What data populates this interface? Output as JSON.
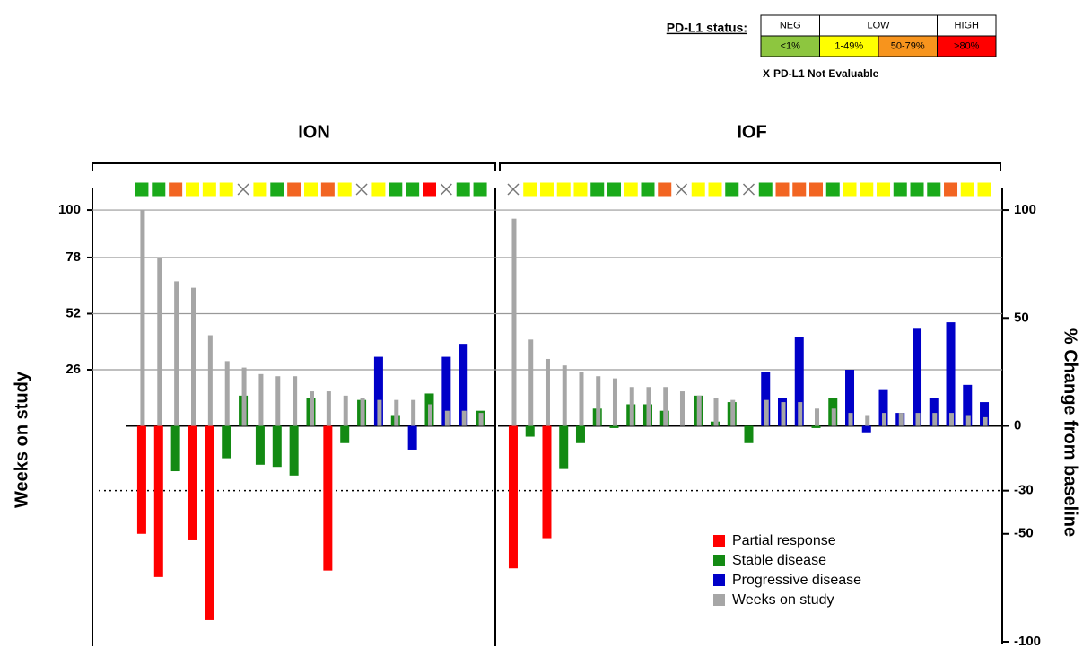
{
  "chart_data": {
    "type": "waterfall",
    "y_label": "Weeks on study",
    "y2_label": "% Change from baseline",
    "ylim": [
      0,
      110
    ],
    "yticks": [
      26,
      52,
      78,
      100
    ],
    "y2lim": [
      -100,
      110
    ],
    "y2ticks": [
      100,
      50,
      0,
      -30,
      -50,
      -100
    ],
    "threshold": -30,
    "grid": true,
    "legend_position": "lower right",
    "pdl1_status": {
      "title": "PD-L1 status:",
      "groups": [
        {
          "label": "NEG",
          "bins": [
            {
              "label": "<1%",
              "color": "#8dc63f"
            }
          ]
        },
        {
          "label": "LOW",
          "bins": [
            {
              "label": "1-49%",
              "color": "#ffff00"
            },
            {
              "label": "50-79%",
              "color": "#f7941d"
            }
          ]
        },
        {
          "label": "HIGH",
          "bins": [
            {
              "label": ">80%",
              "color": "#ff0000"
            }
          ]
        }
      ],
      "not_evaluable_symbol": "X",
      "not_evaluable_label": "PD-L1 Not Evaluable",
      "patient_colors": {
        "<1%": "#1aaa1a",
        "1-49%": "#ffff00",
        "50-79%": "#f26522",
        ">80%": "#ff0000"
      }
    },
    "series": [
      {
        "name": "Partial response",
        "color": "#ff0000"
      },
      {
        "name": "Stable disease",
        "color": "#138a13"
      },
      {
        "name": "Progressive disease",
        "color": "#0000c8"
      },
      {
        "name": "Weeks on study",
        "color": "#a6a6a6"
      }
    ],
    "panels": [
      {
        "name": "ION",
        "pdl1": [
          "<1%",
          "<1%",
          "50-79%",
          "1-49%",
          "1-49%",
          "1-49%",
          null,
          "1-49%",
          "<1%",
          "50-79%",
          "1-49%",
          "50-79%",
          "1-49%",
          null,
          "1-49%",
          "<1%",
          "<1%",
          ">80%",
          null,
          "<1%",
          "<1%"
        ],
        "values": [
          [
            -50,
            -70,
            null,
            -53,
            -90,
            null,
            null,
            null,
            null,
            null,
            null,
            -67,
            null,
            null,
            null,
            null,
            null,
            null,
            null,
            null,
            null
          ],
          [
            null,
            null,
            -21,
            null,
            null,
            -15,
            14,
            -18,
            -19,
            -23,
            13,
            null,
            -8,
            12,
            null,
            5,
            null,
            15,
            null,
            null,
            7
          ],
          [
            null,
            null,
            null,
            null,
            null,
            null,
            null,
            null,
            null,
            null,
            null,
            null,
            null,
            null,
            32,
            null,
            -11,
            null,
            32,
            38,
            null
          ],
          [
            100,
            78,
            67,
            64,
            42,
            30,
            27,
            24,
            23,
            23,
            16,
            16,
            14,
            13,
            12,
            12,
            12,
            10,
            7,
            7,
            6
          ]
        ]
      },
      {
        "name": "IOF",
        "pdl1": [
          null,
          "1-49%",
          "1-49%",
          "1-49%",
          "1-49%",
          "<1%",
          "<1%",
          "1-49%",
          "<1%",
          "50-79%",
          null,
          "1-49%",
          "1-49%",
          "<1%",
          null,
          "<1%",
          "50-79%",
          "50-79%",
          "50-79%",
          "<1%",
          "1-49%",
          "1-49%",
          "1-49%",
          "<1%",
          "<1%",
          "<1%",
          "50-79%",
          "1-49%",
          "1-49%"
        ],
        "values": [
          [
            -66,
            null,
            -52,
            null,
            null,
            null,
            null,
            null,
            null,
            null,
            null,
            null,
            null,
            null,
            null,
            null,
            null,
            null,
            null,
            null,
            null,
            null,
            null,
            null,
            null,
            null,
            null,
            null,
            null
          ],
          [
            null,
            -5,
            null,
            -20,
            -8,
            8,
            -1,
            10,
            10,
            7,
            null,
            14,
            2,
            11,
            -8,
            null,
            null,
            null,
            -1,
            13,
            null,
            null,
            null,
            null,
            null,
            null,
            null,
            null,
            null
          ],
          [
            null,
            null,
            null,
            null,
            null,
            null,
            null,
            null,
            null,
            null,
            null,
            null,
            null,
            null,
            null,
            25,
            13,
            41,
            null,
            null,
            26,
            -3,
            17,
            6,
            45,
            13,
            48,
            19,
            11
          ],
          [
            96,
            40,
            31,
            28,
            25,
            23,
            22,
            18,
            18,
            18,
            16,
            14,
            13,
            12,
            null,
            12,
            11,
            11,
            8,
            8,
            6,
            5,
            6,
            6,
            6,
            6,
            6,
            5,
            4
          ]
        ]
      }
    ]
  }
}
